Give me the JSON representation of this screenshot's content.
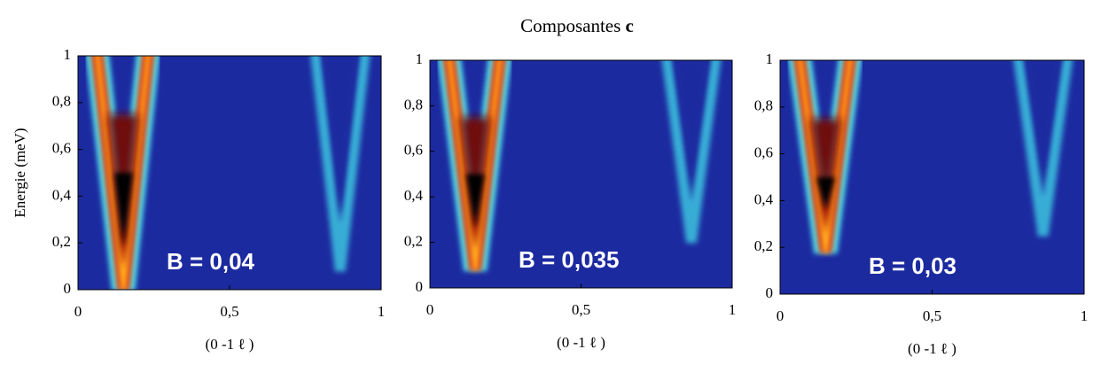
{
  "title": {
    "text": "Composantes",
    "bold": "c"
  },
  "chart_data": [
    {
      "type": "heatmap",
      "ylabel": "Energie (meV)",
      "xlabel": "(0 -1 ℓ )",
      "annotation": "B = 0,04",
      "xlim": [
        0,
        1
      ],
      "ylim": [
        0,
        1
      ],
      "xticks": [
        0,
        {
          "value": 0.5,
          "label": "0,5"
        },
        1
      ],
      "yticks": [
        0,
        {
          "value": 0.2,
          "label": "0,2"
        },
        {
          "value": 0.4,
          "label": "0,4"
        },
        {
          "value": 0.6,
          "label": "0,6"
        },
        {
          "value": 0.8,
          "label": "0,8"
        },
        1
      ],
      "background": "#1c2aa0"
    },
    {
      "type": "heatmap",
      "xlabel": "(0 -1 ℓ )",
      "annotation": "B = 0,035",
      "xlim": [
        0,
        1
      ],
      "ylim": [
        0,
        1
      ],
      "xticks": [
        0,
        {
          "value": 0.5,
          "label": "0,5"
        },
        1
      ],
      "yticks": [
        0,
        {
          "value": 0.2,
          "label": "0,2"
        },
        {
          "value": 0.4,
          "label": "0,4"
        },
        {
          "value": 0.6,
          "label": "0,6"
        },
        {
          "value": 0.8,
          "label": "0,8"
        },
        1
      ],
      "background": "#1c2aa0"
    },
    {
      "type": "heatmap",
      "xlabel": "(0 -1 ℓ )",
      "annotation": "B = 0,03",
      "xlim": [
        0,
        1
      ],
      "ylim": [
        0,
        1
      ],
      "xticks": [
        0,
        {
          "value": 0.5,
          "label": "0,5"
        },
        1
      ],
      "yticks": [
        0,
        {
          "value": 0.2,
          "label": "0,2"
        },
        {
          "value": 0.4,
          "label": "0,4"
        },
        {
          "value": 0.6,
          "label": "0,6"
        },
        {
          "value": 0.8,
          "label": "0,8"
        },
        1
      ],
      "background": "#1c2aa0"
    }
  ]
}
